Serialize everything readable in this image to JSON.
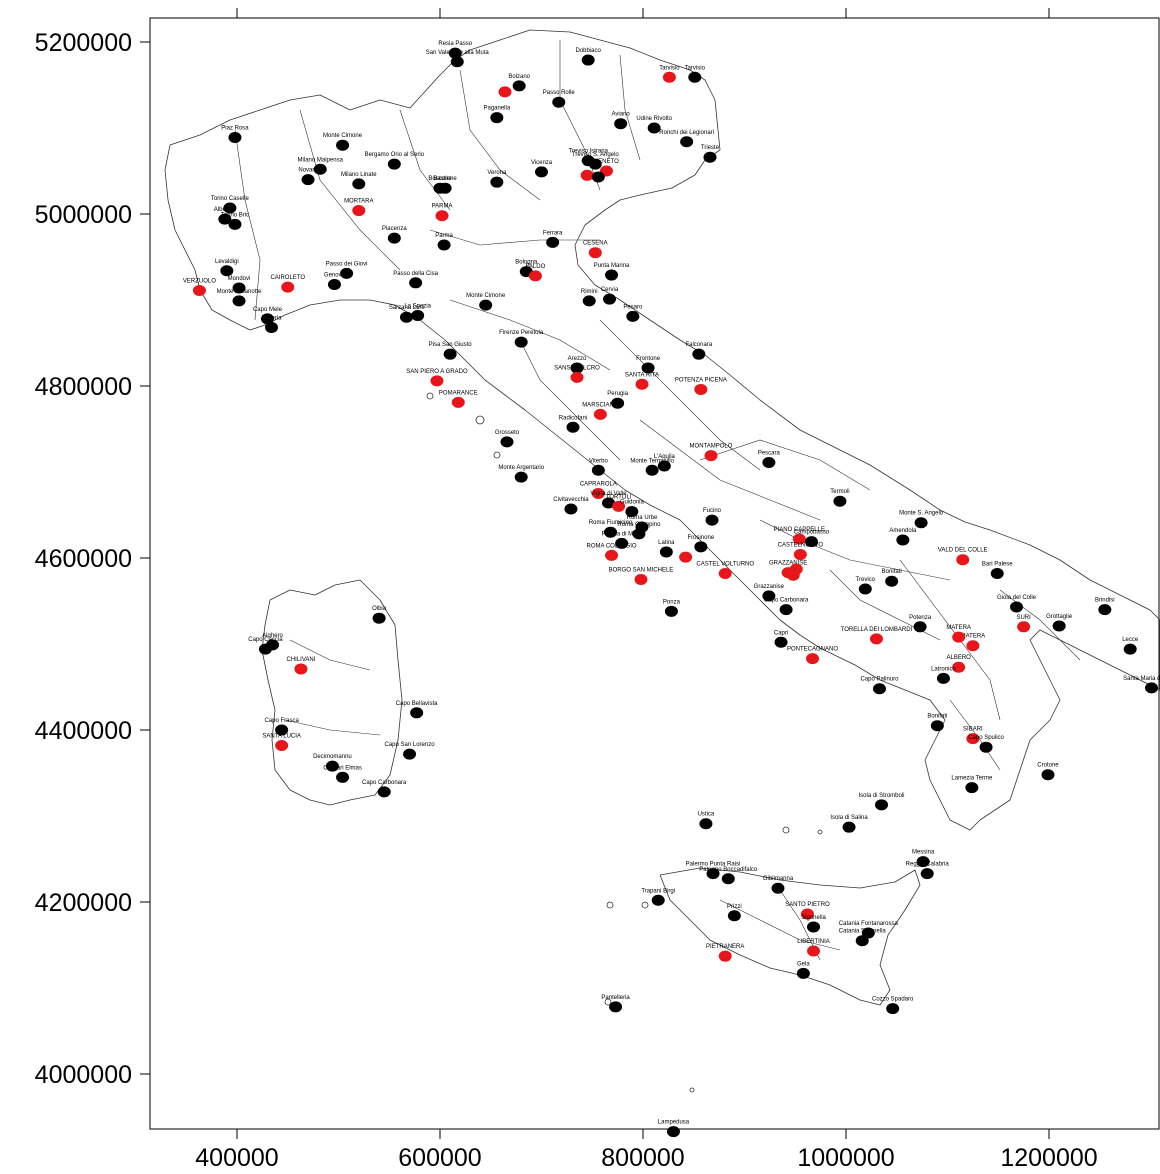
{
  "axes": {
    "x_ticks": [
      400000,
      600000,
      800000,
      1000000,
      1200000
    ],
    "y_ticks": [
      5200000,
      5000000,
      4800000,
      4600000,
      4400000,
      4200000,
      4000000
    ],
    "x_range": [
      315000,
      1310000
    ],
    "y_range": [
      3930000,
      5232000
    ]
  },
  "colors": {
    "black_station": "#000000",
    "red_station": "#e8161b",
    "boundary": "#333333"
  },
  "stations": [
    {
      "name": "Resia Passo",
      "x": 615000,
      "y": 5187000,
      "color": "black"
    },
    {
      "name": "San Valentino alla Muta",
      "x": 617000,
      "y": 5177000,
      "color": "black"
    },
    {
      "name": "Dobbiaco",
      "x": 746000,
      "y": 5179000,
      "color": "black"
    },
    {
      "name": "Bolzano",
      "x": 678000,
      "y": 5149000,
      "color": "black"
    },
    {
      "name": "",
      "x": 664000,
      "y": 5142000,
      "color": "red"
    },
    {
      "name": "Tarvisio",
      "x": 826000,
      "y": 5159000,
      "color": "red"
    },
    {
      "name": "Tarvisio",
      "x": 851000,
      "y": 5159000,
      "color": "black"
    },
    {
      "name": "Passo Rolle",
      "x": 717000,
      "y": 5130000,
      "color": "black"
    },
    {
      "name": "Paganella",
      "x": 656000,
      "y": 5112000,
      "color": "black"
    },
    {
      "name": "Aviano",
      "x": 778000,
      "y": 5105000,
      "color": "black"
    },
    {
      "name": "Udine Rivolto",
      "x": 811000,
      "y": 5100000,
      "color": "black"
    },
    {
      "name": "Ronchi dei Legionari",
      "x": 843000,
      "y": 5084000,
      "color": "black"
    },
    {
      "name": "Trieste",
      "x": 866000,
      "y": 5066000,
      "color": "black"
    },
    {
      "name": "Piaz Rosa",
      "x": 398000,
      "y": 5089000,
      "color": "black"
    },
    {
      "name": "Monte Cimone",
      "x": 504000,
      "y": 5080000,
      "color": "black"
    },
    {
      "name": "Bergamo Orio al Serio",
      "x": 555000,
      "y": 5058000,
      "color": "black"
    },
    {
      "name": "Milano Malpensa",
      "x": 482000,
      "y": 5052000,
      "color": "black"
    },
    {
      "name": "Novara",
      "x": 470000,
      "y": 5040000,
      "color": "black"
    },
    {
      "name": "Milano Linate",
      "x": 520000,
      "y": 5035000,
      "color": "black"
    },
    {
      "name": "Treviso Istrana",
      "x": 746000,
      "y": 5062000,
      "color": "black"
    },
    {
      "name": "Treviso S. Angelo",
      "x": 753000,
      "y": 5058000,
      "color": "black"
    },
    {
      "name": "",
      "x": 745000,
      "y": 5045000,
      "color": "red"
    },
    {
      "name": "VENETO",
      "x": 764000,
      "y": 5050000,
      "color": "red"
    },
    {
      "name": "",
      "x": 756000,
      "y": 5043000,
      "color": "black"
    },
    {
      "name": "Vicenza",
      "x": 700000,
      "y": 5049000,
      "color": "black"
    },
    {
      "name": "Verona",
      "x": 656000,
      "y": 5037000,
      "color": "black"
    },
    {
      "name": "Boscone",
      "x": 600000,
      "y": 5030000,
      "color": "black"
    },
    {
      "name": "Bastione",
      "x": 605000,
      "y": 5030000,
      "color": "black"
    },
    {
      "name": "MORTARA",
      "x": 520000,
      "y": 5004000,
      "color": "red"
    },
    {
      "name": "PARMA",
      "x": 602000,
      "y": 4998000,
      "color": "red"
    },
    {
      "name": "Torino Caselle",
      "x": 393000,
      "y": 5007000,
      "color": "black"
    },
    {
      "name": "Albenga",
      "x": 388000,
      "y": 4994000,
      "color": "black"
    },
    {
      "name": "Torino Bric",
      "x": 398000,
      "y": 4988000,
      "color": "black"
    },
    {
      "name": "Piacenza",
      "x": 555000,
      "y": 4972000,
      "color": "black"
    },
    {
      "name": "Parma",
      "x": 604000,
      "y": 4964000,
      "color": "black"
    },
    {
      "name": "Bologna",
      "x": 685000,
      "y": 4933000,
      "color": "black"
    },
    {
      "name": "Ferrara",
      "x": 711000,
      "y": 4967000,
      "color": "black"
    },
    {
      "name": "CESENA",
      "x": 753000,
      "y": 4955000,
      "color": "red"
    },
    {
      "name": "FALDO",
      "x": 694000,
      "y": 4928000,
      "color": "red"
    },
    {
      "name": "Punta Marina",
      "x": 769000,
      "y": 4929000,
      "color": "black"
    },
    {
      "name": "Cervia",
      "x": 767000,
      "y": 4901000,
      "color": "black"
    },
    {
      "name": "Rimini",
      "x": 747000,
      "y": 4899000,
      "color": "black"
    },
    {
      "name": "Pesaro",
      "x": 790000,
      "y": 4881000,
      "color": "black"
    },
    {
      "name": "Levaldigi",
      "x": 390000,
      "y": 4934000,
      "color": "black"
    },
    {
      "name": "VERZUOLO",
      "x": 363000,
      "y": 4911000,
      "color": "red"
    },
    {
      "name": "Mondovi",
      "x": 402000,
      "y": 4914000,
      "color": "black"
    },
    {
      "name": "Monte Malanotte",
      "x": 402000,
      "y": 4899000,
      "color": "black"
    },
    {
      "name": "CAIROLETO",
      "x": 450000,
      "y": 4915000,
      "color": "red"
    },
    {
      "name": "Passo dei Giovi",
      "x": 508000,
      "y": 4931000,
      "color": "black"
    },
    {
      "name": "Genova",
      "x": 496000,
      "y": 4918000,
      "color": "black"
    },
    {
      "name": "Passo della Cisa",
      "x": 576000,
      "y": 4920000,
      "color": "black"
    },
    {
      "name": "Sarzana Luni",
      "x": 567000,
      "y": 4880000,
      "color": "black"
    },
    {
      "name": "La Spezia",
      "x": 578000,
      "y": 4882000,
      "color": "black"
    },
    {
      "name": "Monte Cimone",
      "x": 645000,
      "y": 4894000,
      "color": "black"
    },
    {
      "name": "Capo Mele",
      "x": 430000,
      "y": 4878000,
      "color": "black"
    },
    {
      "name": "Imperia",
      "x": 434000,
      "y": 4868000,
      "color": "black"
    },
    {
      "name": "Firenze Peretola",
      "x": 680000,
      "y": 4851000,
      "color": "black"
    },
    {
      "name": "Pisa San Giusto",
      "x": 610000,
      "y": 4837000,
      "color": "black"
    },
    {
      "name": "SAN PIERO A GRADO",
      "x": 597000,
      "y": 4806000,
      "color": "red"
    },
    {
      "name": "POMARANCE",
      "x": 618000,
      "y": 4781000,
      "color": "red"
    },
    {
      "name": "Frontone",
      "x": 805000,
      "y": 4821000,
      "color": "black"
    },
    {
      "name": "Falconara",
      "x": 855000,
      "y": 4837000,
      "color": "black"
    },
    {
      "name": "Arezzo",
      "x": 735000,
      "y": 4821000,
      "color": "black"
    },
    {
      "name": "SANSEPOLCRO",
      "x": 735000,
      "y": 4810000,
      "color": "red"
    },
    {
      "name": "SANTA RITA",
      "x": 799000,
      "y": 4802000,
      "color": "red"
    },
    {
      "name": "POTENZA PICENA",
      "x": 857000,
      "y": 4796000,
      "color": "red"
    },
    {
      "name": "Perugia",
      "x": 775000,
      "y": 4780000,
      "color": "black"
    },
    {
      "name": "MARSCIANO",
      "x": 758000,
      "y": 4767000,
      "color": "red"
    },
    {
      "name": "Radicofani",
      "x": 731000,
      "y": 4752000,
      "color": "black"
    },
    {
      "name": "Grosseto",
      "x": 666000,
      "y": 4735000,
      "color": "black"
    },
    {
      "name": "MONTAMPOLO",
      "x": 867000,
      "y": 4719000,
      "color": "red"
    },
    {
      "name": "Pescara",
      "x": 924000,
      "y": 4711000,
      "color": "black"
    },
    {
      "name": "Monte Terminillo",
      "x": 809000,
      "y": 4702000,
      "color": "black"
    },
    {
      "name": "L'Aquila",
      "x": 821000,
      "y": 4707000,
      "color": "black"
    },
    {
      "name": "Viterbo",
      "x": 756000,
      "y": 4702000,
      "color": "black"
    },
    {
      "name": "Monte Argentario",
      "x": 680000,
      "y": 4694000,
      "color": "black"
    },
    {
      "name": "Termoli",
      "x": 994000,
      "y": 4666000,
      "color": "black"
    },
    {
      "name": "CAPRAROLA",
      "x": 756000,
      "y": 4675000,
      "color": "red"
    },
    {
      "name": "Vigna di Valle",
      "x": 766000,
      "y": 4664000,
      "color": "black"
    },
    {
      "name": "TORTOLI",
      "x": 776000,
      "y": 4660000,
      "color": "red"
    },
    {
      "name": "Civitavecchia",
      "x": 729000,
      "y": 4657000,
      "color": "black"
    },
    {
      "name": "Guidonia",
      "x": 789000,
      "y": 4654000,
      "color": "black"
    },
    {
      "name": "Roma Urbe",
      "x": 799000,
      "y": 4636000,
      "color": "black"
    },
    {
      "name": "Roma Ciampino",
      "x": 796000,
      "y": 4628000,
      "color": "black"
    },
    {
      "name": "Roma Fiumicino",
      "x": 768000,
      "y": 4630000,
      "color": "black"
    },
    {
      "name": "Pratica di Mare",
      "x": 779000,
      "y": 4617000,
      "color": "black"
    },
    {
      "name": "Latina",
      "x": 823000,
      "y": 4607000,
      "color": "black"
    },
    {
      "name": "Frosinone",
      "x": 857000,
      "y": 4613000,
      "color": "black"
    },
    {
      "name": "Fucino",
      "x": 868000,
      "y": 4644000,
      "color": "black"
    },
    {
      "name": "Monte S. Angelo",
      "x": 1074000,
      "y": 4641000,
      "color": "black"
    },
    {
      "name": "Amendola",
      "x": 1056000,
      "y": 4621000,
      "color": "black"
    },
    {
      "name": "PIANO CAPPELLE",
      "x": 954000,
      "y": 4622000,
      "color": "red"
    },
    {
      "name": "Campobasso",
      "x": 966000,
      "y": 4619000,
      "color": "black"
    },
    {
      "name": "CASTELNUOVO",
      "x": 955000,
      "y": 4604000,
      "color": "red"
    },
    {
      "name": "ROMA COLLEGIO",
      "x": 769000,
      "y": 4603000,
      "color": "red"
    },
    {
      "name": "",
      "x": 842000,
      "y": 4601000,
      "color": "red"
    },
    {
      "name": "CASTEL VOLTURNO",
      "x": 881000,
      "y": 4582000,
      "color": "red"
    },
    {
      "name": "BORGO SAN MICHELE",
      "x": 798000,
      "y": 4575000,
      "color": "red"
    },
    {
      "name": "GRAZZANISE",
      "x": 943000,
      "y": 4583000,
      "color": "red"
    },
    {
      "name": "",
      "x": 951000,
      "y": 4587000,
      "color": "red"
    },
    {
      "name": "",
      "x": 948000,
      "y": 4580000,
      "color": "red"
    },
    {
      "name": "Grazzanise",
      "x": 924000,
      "y": 4556000,
      "color": "black"
    },
    {
      "name": "Trevico",
      "x": 1019000,
      "y": 4564000,
      "color": "black"
    },
    {
      "name": "Bonifati",
      "x": 1045000,
      "y": 4573000,
      "color": "black"
    },
    {
      "name": "VALD DEL COLLE",
      "x": 1115000,
      "y": 4598000,
      "color": "red"
    },
    {
      "name": "Bari Palese",
      "x": 1149000,
      "y": 4582000,
      "color": "black"
    },
    {
      "name": "Capo Carbonara",
      "x": 941000,
      "y": 4540000,
      "color": "black"
    },
    {
      "name": "Ponza",
      "x": 828000,
      "y": 4538000,
      "color": "black"
    },
    {
      "name": "Gioia del Colle",
      "x": 1168000,
      "y": 4543000,
      "color": "black"
    },
    {
      "name": "Grottaglie",
      "x": 1210000,
      "y": 4521000,
      "color": "black"
    },
    {
      "name": "SURI",
      "x": 1175000,
      "y": 4520000,
      "color": "red"
    },
    {
      "name": "Brindisi",
      "x": 1255000,
      "y": 4540000,
      "color": "black"
    },
    {
      "name": "Potenza",
      "x": 1073000,
      "y": 4520000,
      "color": "black"
    },
    {
      "name": "TORELLA DEI LOMBARDI",
      "x": 1030000,
      "y": 4506000,
      "color": "red"
    },
    {
      "name": "MATERA",
      "x": 1125000,
      "y": 4498000,
      "color": "red"
    },
    {
      "name": "MATERA",
      "x": 1111000,
      "y": 4508000,
      "color": "red"
    },
    {
      "name": "Capri",
      "x": 936000,
      "y": 4502000,
      "color": "black"
    },
    {
      "name": "PONTECAGNANO",
      "x": 967000,
      "y": 4483000,
      "color": "red"
    },
    {
      "name": "Lecce",
      "x": 1280000,
      "y": 4494000,
      "color": "black"
    },
    {
      "name": "ALBERO",
      "x": 1111000,
      "y": 4473000,
      "color": "red"
    },
    {
      "name": "Latronico",
      "x": 1096000,
      "y": 4460000,
      "color": "black"
    },
    {
      "name": "Capo Palinuro",
      "x": 1033000,
      "y": 4448000,
      "color": "black"
    },
    {
      "name": "Santa Maria di Leuca",
      "x": 1301000,
      "y": 4449000,
      "color": "black"
    },
    {
      "name": "Bonifati",
      "x": 1090000,
      "y": 4405000,
      "color": "black"
    },
    {
      "name": "SIBARI",
      "x": 1125000,
      "y": 4390000,
      "color": "red"
    },
    {
      "name": "Capo Spulico",
      "x": 1138000,
      "y": 4380000,
      "color": "black"
    },
    {
      "name": "Crotone",
      "x": 1199000,
      "y": 4348000,
      "color": "black"
    },
    {
      "name": "Lamezia Terme",
      "x": 1124000,
      "y": 4333000,
      "color": "black"
    },
    {
      "name": "Olbia",
      "x": 540000,
      "y": 4530000,
      "color": "black"
    },
    {
      "name": "Alghero",
      "x": 435000,
      "y": 4499000,
      "color": "black"
    },
    {
      "name": "Capo Caccia",
      "x": 428000,
      "y": 4494000,
      "color": "black"
    },
    {
      "name": "CHILIVANI",
      "x": 463000,
      "y": 4471000,
      "color": "red"
    },
    {
      "name": "Capo Bellavista",
      "x": 577000,
      "y": 4420000,
      "color": "black"
    },
    {
      "name": "Capo Frasca",
      "x": 444000,
      "y": 4400000,
      "color": "black"
    },
    {
      "name": "SANTA LUCIA",
      "x": 444000,
      "y": 4382000,
      "color": "red"
    },
    {
      "name": "Capo San Lorenzo",
      "x": 570000,
      "y": 4372000,
      "color": "black"
    },
    {
      "name": "Decimomannu",
      "x": 494000,
      "y": 4358000,
      "color": "black"
    },
    {
      "name": "Cagliari Elmas",
      "x": 504000,
      "y": 4345000,
      "color": "black"
    },
    {
      "name": "Capo Carbonara",
      "x": 545000,
      "y": 4328000,
      "color": "black"
    },
    {
      "name": "Isola di Stromboli",
      "x": 1035000,
      "y": 4313000,
      "color": "black"
    },
    {
      "name": "Ustica",
      "x": 862000,
      "y": 4291000,
      "color": "black"
    },
    {
      "name": "Isola di Salina",
      "x": 1003000,
      "y": 4287000,
      "color": "black"
    },
    {
      "name": "Messina",
      "x": 1076000,
      "y": 4247000,
      "color": "black"
    },
    {
      "name": "Reggio Calabria",
      "x": 1080000,
      "y": 4233000,
      "color": "black"
    },
    {
      "name": "Palermo Punta Raisi",
      "x": 869000,
      "y": 4233000,
      "color": "black"
    },
    {
      "name": "Palermo Boccadifalco",
      "x": 884000,
      "y": 4227000,
      "color": "black"
    },
    {
      "name": "Gibilmanna",
      "x": 933000,
      "y": 4216000,
      "color": "black"
    },
    {
      "name": "Trapani Birgi",
      "x": 815000,
      "y": 4202000,
      "color": "black"
    },
    {
      "name": "SANTO PIETRO",
      "x": 962000,
      "y": 4186000,
      "color": "red"
    },
    {
      "name": "Prizzi",
      "x": 890000,
      "y": 4184000,
      "color": "black"
    },
    {
      "name": "Sigonella",
      "x": 968000,
      "y": 4171000,
      "color": "black"
    },
    {
      "name": "Catania Fontanarossa",
      "x": 1022000,
      "y": 4164000,
      "color": "black"
    },
    {
      "name": "Catania Sigonella",
      "x": 1016000,
      "y": 4155000,
      "color": "black"
    },
    {
      "name": "LIBERTINIA",
      "x": 968000,
      "y": 4143000,
      "color": "red"
    },
    {
      "name": "PIETRANERA",
      "x": 881000,
      "y": 4137000,
      "color": "red"
    },
    {
      "name": "Gela",
      "x": 958000,
      "y": 4117000,
      "color": "black"
    },
    {
      "name": "Cozzo Spadaro",
      "x": 1046000,
      "y": 4076000,
      "color": "black"
    },
    {
      "name": "Pantelleria",
      "x": 773000,
      "y": 4078000,
      "color": "black"
    },
    {
      "name": "Lampedusa",
      "x": 830000,
      "y": 3933000,
      "color": "black"
    }
  ]
}
